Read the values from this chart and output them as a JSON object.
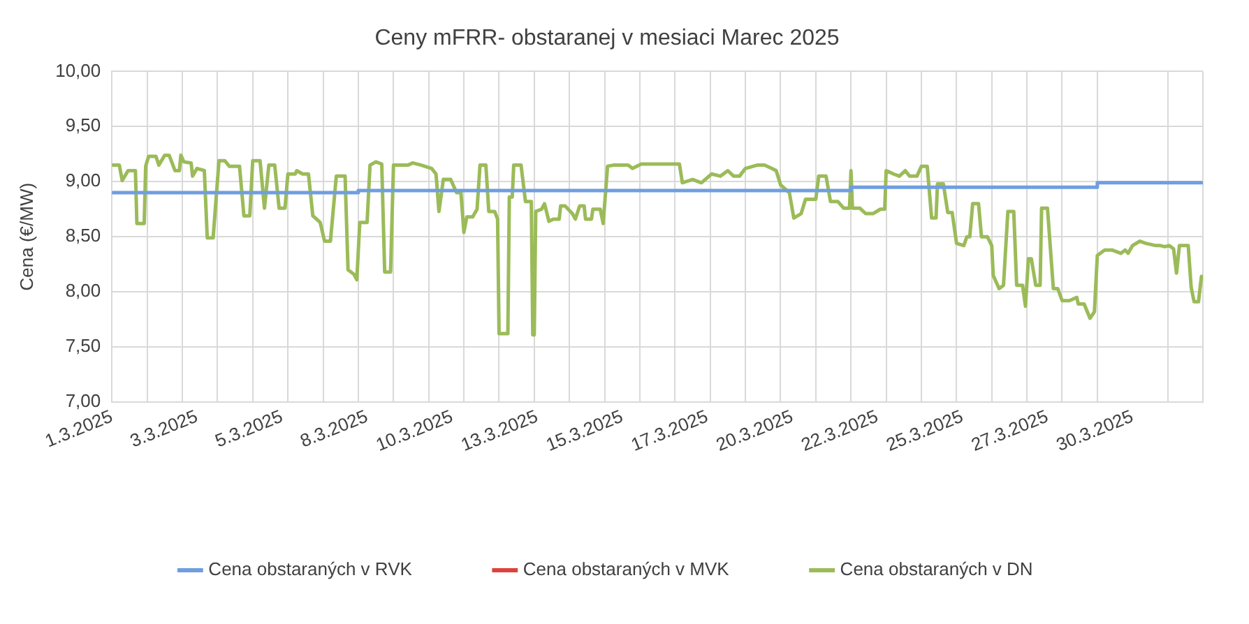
{
  "chart_data": {
    "type": "line",
    "title": "Ceny mFRR- obstaranej v mesiaci Marec 2025",
    "ylabel": "Cena (€/MW)",
    "xlim": [
      "2025-03-01T00:00",
      "2025-04-01T00:00"
    ],
    "xticks": [
      {
        "value": "2025-03-01T00:00",
        "label": "1.3.2025"
      },
      {
        "value": "2025-03-02T00:00",
        "label": null
      },
      {
        "value": "2025-03-03T00:00",
        "label": null
      },
      {
        "value": "2025-03-03T10:00",
        "label": "3.3.2025"
      },
      {
        "value": "2025-03-04T00:00",
        "label": null
      },
      {
        "value": "2025-03-05T00:00",
        "label": null
      },
      {
        "value": "2025-03-05T20:00",
        "label": "5.3.2025"
      },
      {
        "value": "2025-03-06T00:00",
        "label": null
      },
      {
        "value": "2025-03-07T00:00",
        "label": null
      },
      {
        "value": "2025-03-08T00:00",
        "label": null
      },
      {
        "value": "2025-03-08T06:00",
        "label": "8.3.2025"
      },
      {
        "value": "2025-03-09T00:00",
        "label": null
      },
      {
        "value": "2025-03-10T00:00",
        "label": null
      },
      {
        "value": "2025-03-10T16:00",
        "label": "10.3.2025"
      },
      {
        "value": "2025-03-11T00:00",
        "label": null
      },
      {
        "value": "2025-03-12T00:00",
        "label": null
      },
      {
        "value": "2025-03-13T00:00",
        "label": null
      },
      {
        "value": "2025-03-13T02:00",
        "label": "13.3.2025"
      },
      {
        "value": "2025-03-14T00:00",
        "label": null
      },
      {
        "value": "2025-03-15T00:00",
        "label": null
      },
      {
        "value": "2025-03-15T12:00",
        "label": "15.3.2025"
      },
      {
        "value": "2025-03-16T00:00",
        "label": null
      },
      {
        "value": "2025-03-17T00:00",
        "label": null
      },
      {
        "value": "2025-03-17T22:00",
        "label": "17.3.2025"
      },
      {
        "value": "2025-03-18T00:00",
        "label": null
      },
      {
        "value": "2025-03-19T00:00",
        "label": null
      },
      {
        "value": "2025-03-20T00:00",
        "label": null
      },
      {
        "value": "2025-03-20T08:00",
        "label": "20.3.2025"
      },
      {
        "value": "2025-03-21T00:00",
        "label": null
      },
      {
        "value": "2025-03-22T00:00",
        "label": null
      },
      {
        "value": "2025-03-22T18:00",
        "label": "22.3.2025"
      },
      {
        "value": "2025-03-23T00:00",
        "label": null
      },
      {
        "value": "2025-03-24T00:00",
        "label": null
      },
      {
        "value": "2025-03-25T00:00",
        "label": null
      },
      {
        "value": "2025-03-25T04:00",
        "label": "25.3.2025"
      },
      {
        "value": "2025-03-26T00:00",
        "label": null
      },
      {
        "value": "2025-03-27T00:00",
        "label": null
      },
      {
        "value": "2025-03-27T14:00",
        "label": "27.3.2025"
      },
      {
        "value": "2025-03-28T00:00",
        "label": null
      },
      {
        "value": "2025-03-29T00:00",
        "label": null
      },
      {
        "value": "2025-03-30T00:00",
        "label": "30.3.2025"
      },
      {
        "value": "2025-03-31T00:00",
        "label": null
      },
      {
        "value": "2025-04-01T00:00",
        "label": null
      }
    ],
    "ylim": [
      7,
      10
    ],
    "yticks": [
      {
        "value": 7,
        "label": "7,00"
      },
      {
        "value": 7.5,
        "label": "7,50"
      },
      {
        "value": 8,
        "label": "8,00"
      },
      {
        "value": 8.5,
        "label": "8,50"
      },
      {
        "value": 9,
        "label": "9,00"
      },
      {
        "value": 9.5,
        "label": "9,50"
      },
      {
        "value": 10,
        "label": "10,00"
      }
    ],
    "grid": true,
    "legend": "bottom",
    "marker": "none",
    "line_style": "solid",
    "series": [
      {
        "name": "Cena obstaraných v RVK",
        "color": "#6f9ee0",
        "type": "step",
        "x": [
          "2025-03-01T00:00",
          "2025-03-08T00:00",
          "2025-03-22T00:00",
          "2025-03-29T00:00",
          "2025-03-31T23:00"
        ],
        "values": [
          8.9,
          8.92,
          8.95,
          8.99,
          8.99
        ]
      },
      {
        "name": "Cena obstaraných v MVK",
        "color": "#e0403a"
      },
      {
        "name": "Cena obstaraných v DN",
        "color": "#9bbb59",
        "x": [
          "2025-03-01T00:00",
          "2025-03-01T05:00",
          "2025-03-01T07:00",
          "2025-03-01T11:00",
          "2025-03-01T16:00",
          "2025-03-01T17:00",
          "2025-03-01T22:00",
          "2025-03-01T23:00",
          "2025-03-02T01:00",
          "2025-03-02T06:00",
          "2025-03-02T08:00",
          "2025-03-02T12:00",
          "2025-03-02T15:00",
          "2025-03-02T19:00",
          "2025-03-02T22:00",
          "2025-03-02T23:00",
          "2025-03-03T01:00",
          "2025-03-03T06:00",
          "2025-03-03T07:00",
          "2025-03-03T10:00",
          "2025-03-03T15:00",
          "2025-03-03T17:00",
          "2025-03-03T21:00",
          "2025-03-04T01:00",
          "2025-03-04T05:00",
          "2025-03-04T08:00",
          "2025-03-04T15:00",
          "2025-03-04T18:00",
          "2025-03-04T22:00",
          "2025-03-05T00:00",
          "2025-03-05T05:00",
          "2025-03-05T08:00",
          "2025-03-05T11:00",
          "2025-03-05T15:00",
          "2025-03-05T18:00",
          "2025-03-05T22:00",
          "2025-03-06T00:00",
          "2025-03-06T05:00",
          "2025-03-06T06:00",
          "2025-03-06T10:00",
          "2025-03-06T14:00",
          "2025-03-06T17:00",
          "2025-03-06T22:00",
          "2025-03-07T01:00",
          "2025-03-07T05:00",
          "2025-03-07T09:00",
          "2025-03-07T15:00",
          "2025-03-07T17:00",
          "2025-03-07T21:00",
          "2025-03-07T23:00",
          "2025-03-08T01:00",
          "2025-03-08T06:00",
          "2025-03-08T08:00",
          "2025-03-08T12:00",
          "2025-03-08T16:00",
          "2025-03-08T18:00",
          "2025-03-08T22:00",
          "2025-03-09T00:00",
          "2025-03-09T10:00",
          "2025-03-09T13:00",
          "2025-03-09T19:00",
          "2025-03-10T02:00",
          "2025-03-10T05:00",
          "2025-03-10T07:00",
          "2025-03-10T10:00",
          "2025-03-10T15:00",
          "2025-03-10T19:00",
          "2025-03-10T22:00",
          "2025-03-11T00:00",
          "2025-03-11T02:00",
          "2025-03-11T06:00",
          "2025-03-11T09:00",
          "2025-03-11T11:00",
          "2025-03-11T15:00",
          "2025-03-11T17:00",
          "2025-03-11T21:00",
          "2025-03-11T23:00",
          "2025-03-12T00:00",
          "2025-03-12T06:00",
          "2025-03-12T07:00",
          "2025-03-12T09:00",
          "2025-03-12T10:00",
          "2025-03-12T15:00",
          "2025-03-12T18:00",
          "2025-03-12T22:00",
          "2025-03-12T23:00",
          "2025-03-13T00:00",
          "2025-03-13T01:00",
          "2025-03-13T05:00",
          "2025-03-13T07:00",
          "2025-03-13T10:00",
          "2025-03-13T13:00",
          "2025-03-13T17:00",
          "2025-03-13T18:00",
          "2025-03-13T21:00",
          "2025-03-14T02:00",
          "2025-03-14T04:00",
          "2025-03-14T07:00",
          "2025-03-14T10:00",
          "2025-03-14T11:00",
          "2025-03-14T15:00",
          "2025-03-14T16:00",
          "2025-03-14T21:00",
          "2025-03-14T23:00",
          "2025-03-15T02:00",
          "2025-03-15T06:00",
          "2025-03-15T16:00",
          "2025-03-15T19:00",
          "2025-03-16T01:00",
          "2025-03-17T03:00",
          "2025-03-17T05:00",
          "2025-03-17T12:00",
          "2025-03-17T18:00",
          "2025-03-18T01:00",
          "2025-03-18T07:00",
          "2025-03-18T12:00",
          "2025-03-18T16:00",
          "2025-03-18T20:00",
          "2025-03-19T00:00",
          "2025-03-19T08:00",
          "2025-03-19T13:00",
          "2025-03-19T18:00",
          "2025-03-19T21:00",
          "2025-03-20T00:00",
          "2025-03-20T06:00",
          "2025-03-20T09:00",
          "2025-03-20T14:00",
          "2025-03-20T17:00",
          "2025-03-21T00:00",
          "2025-03-21T02:00",
          "2025-03-21T07:00",
          "2025-03-21T10:00",
          "2025-03-21T15:00",
          "2025-03-21T19:00",
          "2025-03-21T23:00",
          "2025-03-22T00:00",
          "2025-03-22T01:00",
          "2025-03-22T06:00",
          "2025-03-22T10:00",
          "2025-03-22T15:00",
          "2025-03-22T20:00",
          "2025-03-22T23:00",
          "2025-03-23T00:00",
          "2025-03-23T05:00",
          "2025-03-23T09:00",
          "2025-03-23T13:00",
          "2025-03-23T16:00",
          "2025-03-23T21:00",
          "2025-03-24T00:00",
          "2025-03-24T04:00",
          "2025-03-24T07:00",
          "2025-03-24T10:00",
          "2025-03-24T11:00",
          "2025-03-24T15:00",
          "2025-03-24T18:00",
          "2025-03-24T21:00",
          "2025-03-25T00:00",
          "2025-03-25T05:00",
          "2025-03-25T07:00",
          "2025-03-25T09:00",
          "2025-03-25T11:00",
          "2025-03-25T15:00",
          "2025-03-25T17:00",
          "2025-03-25T21:00",
          "2025-03-26T00:00",
          "2025-03-26T01:00",
          "2025-03-26T05:00",
          "2025-03-26T08:00",
          "2025-03-26T11:00",
          "2025-03-26T15:00",
          "2025-03-26T17:00",
          "2025-03-26T21:00",
          "2025-03-26T23:00",
          "2025-03-27T01:00",
          "2025-03-27T03:00",
          "2025-03-27T06:00",
          "2025-03-27T09:00",
          "2025-03-27T10:00",
          "2025-03-27T14:00",
          "2025-03-27T18:00",
          "2025-03-27T21:00",
          "2025-03-28T00:00",
          "2025-03-28T05:00",
          "2025-03-28T10:00",
          "2025-03-28T11:00",
          "2025-03-28T15:00",
          "2025-03-28T19:00",
          "2025-03-28T22:00",
          "2025-03-29T00:00",
          "2025-03-29T05:00",
          "2025-03-29T10:00",
          "2025-03-29T16:00",
          "2025-03-29T19:00",
          "2025-03-29T21:00",
          "2025-03-30T00:00",
          "2025-03-30T05:00",
          "2025-03-30T09:00",
          "2025-03-30T16:00",
          "2025-03-30T19:00",
          "2025-03-30T22:00",
          "2025-03-31T01:00",
          "2025-03-31T04:00",
          "2025-03-31T06:00",
          "2025-03-31T08:00",
          "2025-03-31T14:00",
          "2025-03-31T16:00",
          "2025-03-31T18:00",
          "2025-03-31T21:00",
          "2025-03-31T23:00"
        ],
        "values": [
          9.15,
          9.15,
          9.01,
          9.1,
          9.1,
          8.62,
          8.62,
          9.14,
          9.23,
          9.23,
          9.15,
          9.24,
          9.24,
          9.1,
          9.1,
          9.24,
          9.18,
          9.17,
          9.05,
          9.12,
          9.1,
          8.49,
          8.49,
          9.19,
          9.19,
          9.14,
          9.14,
          8.69,
          8.69,
          9.19,
          9.19,
          8.76,
          9.15,
          9.15,
          8.76,
          8.76,
          9.07,
          9.07,
          9.1,
          9.07,
          9.07,
          8.69,
          8.63,
          8.46,
          8.46,
          9.05,
          9.05,
          8.2,
          8.16,
          8.11,
          8.63,
          8.63,
          9.15,
          9.18,
          9.16,
          8.18,
          8.18,
          9.15,
          9.15,
          9.17,
          9.15,
          9.12,
          9.07,
          8.73,
          9.02,
          9.02,
          8.9,
          8.9,
          8.54,
          8.68,
          8.68,
          8.75,
          9.15,
          9.15,
          8.73,
          8.73,
          8.66,
          7.62,
          7.62,
          8.86,
          8.86,
          9.15,
          9.15,
          8.82,
          8.82,
          7.61,
          7.61,
          8.73,
          8.75,
          8.8,
          8.64,
          8.66,
          8.66,
          8.78,
          8.78,
          8.71,
          8.66,
          8.78,
          8.78,
          8.66,
          8.66,
          8.75,
          8.75,
          8.62,
          9.14,
          9.15,
          9.15,
          9.12,
          9.16,
          9.16,
          8.99,
          9.02,
          8.99,
          9.07,
          9.05,
          9.1,
          9.05,
          9.05,
          9.12,
          9.15,
          9.15,
          9.12,
          9.1,
          8.97,
          8.9,
          8.67,
          8.71,
          8.84,
          8.84,
          9.05,
          9.05,
          8.82,
          8.82,
          8.76,
          8.76,
          9.1,
          8.76,
          8.76,
          8.71,
          8.71,
          8.75,
          8.75,
          9.1,
          9.07,
          9.05,
          9.1,
          9.05,
          9.05,
          9.14,
          9.14,
          8.67,
          8.67,
          8.98,
          8.98,
          8.72,
          8.72,
          8.44,
          8.42,
          8.5,
          8.5,
          8.8,
          8.8,
          8.5,
          8.5,
          8.42,
          8.15,
          8.03,
          8.06,
          8.73,
          8.73,
          8.06,
          8.06,
          7.87,
          8.3,
          8.3,
          8.06,
          8.06,
          8.76,
          8.76,
          8.03,
          8.03,
          7.92,
          7.92,
          7.95,
          7.89,
          7.89,
          7.76,
          7.82,
          8.33,
          8.38,
          8.38,
          8.35,
          8.38,
          8.35,
          8.42,
          8.46,
          8.44,
          8.42,
          8.42,
          8.41,
          8.42,
          8.39,
          8.17,
          8.42,
          8.42,
          8.04,
          7.91,
          7.91,
          8.14
        ]
      }
    ]
  }
}
